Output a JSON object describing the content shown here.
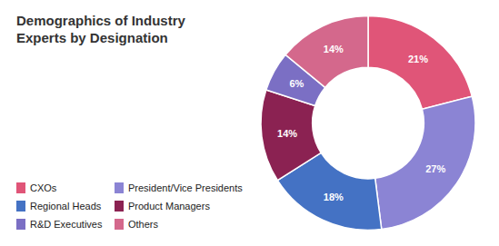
{
  "chart_data": {
    "type": "pie",
    "title": "Demographics of Industry\nExperts by Designation",
    "categories": [
      "CXOs",
      "President/Vice Presidents",
      "Regional Heads",
      "Product Managers",
      "R&D Executives",
      "Others"
    ],
    "values": [
      21,
      27,
      18,
      14,
      6,
      14
    ],
    "value_labels": [
      "21%",
      "27%",
      "18%",
      "14%",
      "6%",
      "14%"
    ],
    "colors": [
      "#E05578",
      "#8B84D4",
      "#4472C4",
      "#8B2252",
      "#7B6FC4",
      "#D4688C"
    ],
    "data_labels": true,
    "legend": "bottom-left"
  }
}
